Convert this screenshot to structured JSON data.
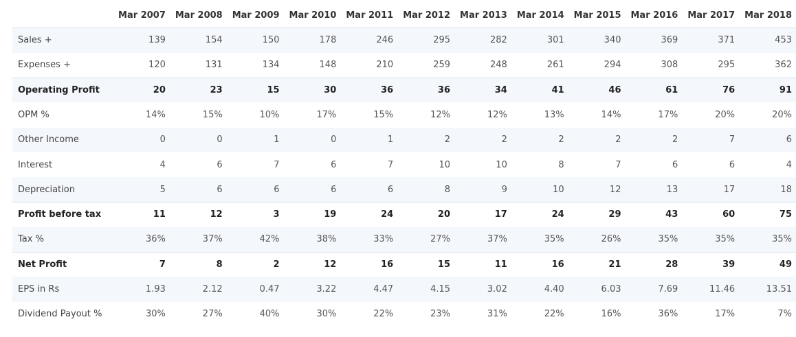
{
  "table": {
    "columns": [
      "Mar 2007",
      "Mar 2008",
      "Mar 2009",
      "Mar 2010",
      "Mar 2011",
      "Mar 2012",
      "Mar 2013",
      "Mar 2014",
      "Mar 2015",
      "Mar 2016",
      "Mar 2017",
      "Mar 2018"
    ],
    "rows": [
      {
        "label": "Sales +",
        "values": [
          "139",
          "154",
          "150",
          "178",
          "246",
          "295",
          "282",
          "301",
          "340",
          "369",
          "371",
          "453"
        ]
      },
      {
        "label": "Expenses +",
        "values": [
          "120",
          "131",
          "134",
          "148",
          "210",
          "259",
          "248",
          "261",
          "294",
          "308",
          "295",
          "362"
        ]
      },
      {
        "label": "Operating Profit",
        "values": [
          "20",
          "23",
          "15",
          "30",
          "36",
          "36",
          "34",
          "41",
          "46",
          "61",
          "76",
          "91"
        ]
      },
      {
        "label": "OPM %",
        "values": [
          "14%",
          "15%",
          "10%",
          "17%",
          "15%",
          "12%",
          "12%",
          "13%",
          "14%",
          "17%",
          "20%",
          "20%"
        ]
      },
      {
        "label": "Other Income",
        "values": [
          "0",
          "0",
          "1",
          "0",
          "1",
          "2",
          "2",
          "2",
          "2",
          "2",
          "7",
          "6"
        ]
      },
      {
        "label": "Interest",
        "values": [
          "4",
          "6",
          "7",
          "6",
          "7",
          "10",
          "10",
          "8",
          "7",
          "6",
          "6",
          "4"
        ]
      },
      {
        "label": "Depreciation",
        "values": [
          "5",
          "6",
          "6",
          "6",
          "6",
          "8",
          "9",
          "10",
          "12",
          "13",
          "17",
          "18"
        ]
      },
      {
        "label": "Profit before tax",
        "values": [
          "11",
          "12",
          "3",
          "19",
          "24",
          "20",
          "17",
          "24",
          "29",
          "43",
          "60",
          "75"
        ]
      },
      {
        "label": "Tax %",
        "values": [
          "36%",
          "37%",
          "42%",
          "38%",
          "33%",
          "27%",
          "37%",
          "35%",
          "26%",
          "35%",
          "35%",
          "35%"
        ]
      },
      {
        "label": "Net Profit",
        "values": [
          "7",
          "8",
          "2",
          "12",
          "16",
          "15",
          "11",
          "16",
          "21",
          "28",
          "39",
          "49"
        ]
      },
      {
        "label": "EPS in Rs",
        "values": [
          "1.93",
          "2.12",
          "0.47",
          "3.22",
          "4.47",
          "4.15",
          "3.02",
          "4.40",
          "6.03",
          "7.69",
          "11.46",
          "13.51"
        ]
      },
      {
        "label": "Dividend Payout %",
        "values": [
          "30%",
          "27%",
          "40%",
          "30%",
          "22%",
          "23%",
          "31%",
          "22%",
          "16%",
          "36%",
          "17%",
          "7%"
        ]
      }
    ]
  }
}
